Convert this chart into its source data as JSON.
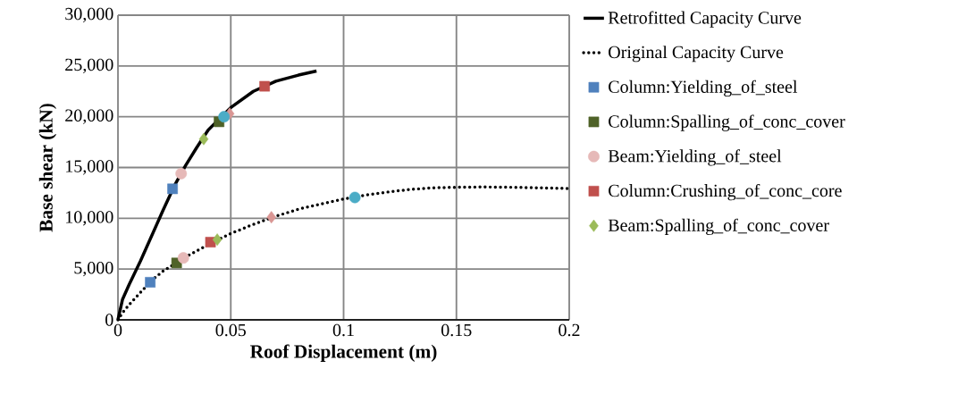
{
  "chart_data": {
    "type": "line",
    "xlabel": "Roof Displacement (m)",
    "ylabel": "Base shear (kN)",
    "xlim": [
      0,
      0.2
    ],
    "xticks": [
      0,
      0.05,
      0.1,
      0.15,
      0.2
    ],
    "ylim": [
      0,
      30000
    ],
    "yticks": [
      0,
      {
        "value": 5000,
        "label": "5,000"
      },
      {
        "value": 10000,
        "label": "10,000"
      },
      {
        "value": 15000,
        "label": "15,000"
      },
      {
        "value": 20000,
        "label": "20,000"
      },
      {
        "value": 25000,
        "label": "25,000"
      },
      {
        "value": 30000,
        "label": "30,000"
      }
    ],
    "grid": true,
    "legend": "right",
    "series": [
      {
        "name": "Retrofitted Capacity Curve",
        "line_style": "solid",
        "marker": "none",
        "color": "#000000",
        "x": [
          0,
          0.002,
          0.005,
          0.01,
          0.015,
          0.02,
          0.025,
          0.03,
          0.035,
          0.04,
          0.045,
          0.05,
          0.06,
          0.07,
          0.08,
          0.088
        ],
        "values": [
          0,
          2000,
          3500,
          5800,
          8300,
          10800,
          13200,
          15200,
          17000,
          18700,
          19800,
          20900,
          22500,
          23500,
          24100,
          24500
        ]
      },
      {
        "name": "Original Capacity Curve",
        "line_style": "dotted",
        "marker": "none",
        "color": "#000000",
        "x": [
          0,
          0.002,
          0.005,
          0.01,
          0.015,
          0.02,
          0.03,
          0.04,
          0.05,
          0.06,
          0.07,
          0.08,
          0.09,
          0.1,
          0.11,
          0.12,
          0.13,
          0.14,
          0.15,
          0.16,
          0.17,
          0.18,
          0.19,
          0.2
        ],
        "values": [
          0,
          700,
          1500,
          2700,
          3900,
          4800,
          6200,
          7400,
          8500,
          9400,
          10200,
          10900,
          11400,
          11900,
          12300,
          12600,
          12850,
          13000,
          13050,
          13080,
          13070,
          13030,
          12980,
          12930
        ]
      },
      {
        "name": "Column:Yielding_of_steel",
        "type": "scatter",
        "marker": "square",
        "color": "#4f81bd",
        "x": [
          0.0143,
          0.0242
        ],
        "values": [
          3700,
          12900
        ]
      },
      {
        "name": "Column:Spalling_of_conc_cover",
        "type": "scatter",
        "marker": "square",
        "color": "#4f6228",
        "x": [
          0.026,
          0.0448
        ],
        "values": [
          5600,
          19500
        ]
      },
      {
        "name": "Beam:Yielding_of_steel",
        "type": "scatter",
        "marker": "circle",
        "color": "#e6b9b8",
        "x": [
          0.029,
          0.028
        ],
        "values": [
          6100,
          14400
        ]
      },
      {
        "name": "Column:Crushing_of_conc_core",
        "type": "scatter",
        "marker": "square",
        "color": "#c0504d",
        "x": [
          0.041,
          0.065
        ],
        "values": [
          7650,
          23000
        ]
      },
      {
        "name": "Beam:Spalling_of_conc_cover",
        "type": "scatter",
        "marker": "diamond",
        "color": "#9bbb59",
        "x": [
          0.044,
          0.038
        ],
        "values": [
          7900,
          17800
        ]
      },
      {
        "type": "scatter",
        "marker": "diamond",
        "color": "#d99694",
        "x": [
          0.068,
          0.0495
        ],
        "values": [
          10100,
          20300
        ]
      },
      {
        "type": "scatter",
        "marker": "circle",
        "color": "#4bacc6",
        "x": [
          0.105,
          0.047
        ],
        "values": [
          12050,
          20000
        ]
      }
    ]
  }
}
